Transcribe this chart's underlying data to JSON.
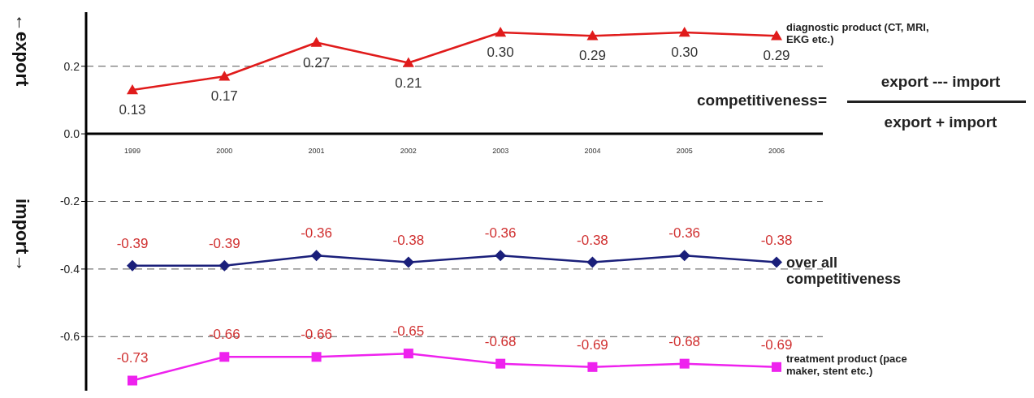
{
  "chart_data": {
    "type": "line",
    "ylabel": "←export",
    "categories": [
      "1999",
      "2000",
      "2001",
      "2002",
      "2003",
      "2004",
      "2005",
      "2006"
    ],
    "series": [
      {
        "name": "diagnostic product (CT, MRI, EKG etc.)",
        "color": "#e01b1b",
        "marker": "triangle",
        "values": [
          0.13,
          0.17,
          0.27,
          0.21,
          0.3,
          0.29,
          0.3,
          0.29
        ],
        "value_labels": [
          "0.13",
          "0.17",
          "0.27",
          "0.21",
          "0.30",
          "0.29",
          "0.30",
          "0.29"
        ]
      },
      {
        "name": "over all competitiveness",
        "color": "#1a1f7a",
        "marker": "diamond",
        "values": [
          -0.39,
          -0.39,
          -0.36,
          -0.38,
          -0.36,
          -0.38,
          -0.36,
          -0.38
        ],
        "value_labels": [
          "-0.39",
          "-0.39",
          "-0.36",
          "-0.38",
          "-0.36",
          "-0.38",
          "-0.36",
          "-0.38"
        ]
      },
      {
        "name": "treatment product (pace maker, stent etc.)",
        "color": "#ee22ee",
        "marker": "square",
        "values": [
          -0.73,
          -0.66,
          -0.66,
          -0.65,
          -0.68,
          -0.69,
          -0.68,
          -0.69
        ],
        "value_labels": [
          "-0.73",
          "-0.66",
          "-0.66",
          "-0.65",
          "-0.68",
          "-0.69",
          "-0.68",
          "-0.69"
        ]
      }
    ],
    "ylim": [
      -0.76,
      0.36
    ],
    "yticks": [
      {
        "value": 0.2,
        "label": "0.2"
      },
      {
        "value": 0.0,
        "label": "0.0"
      },
      {
        "value": -0.2,
        "label": "-0.2"
      },
      {
        "value": -0.4,
        "label": "-0.4"
      },
      {
        "value": -0.6,
        "label": "-0.6"
      }
    ],
    "grid": "y",
    "line_style": "solid",
    "annotations": [
      "import→",
      "competitiveness=",
      "export --- import",
      "export + import"
    ]
  }
}
